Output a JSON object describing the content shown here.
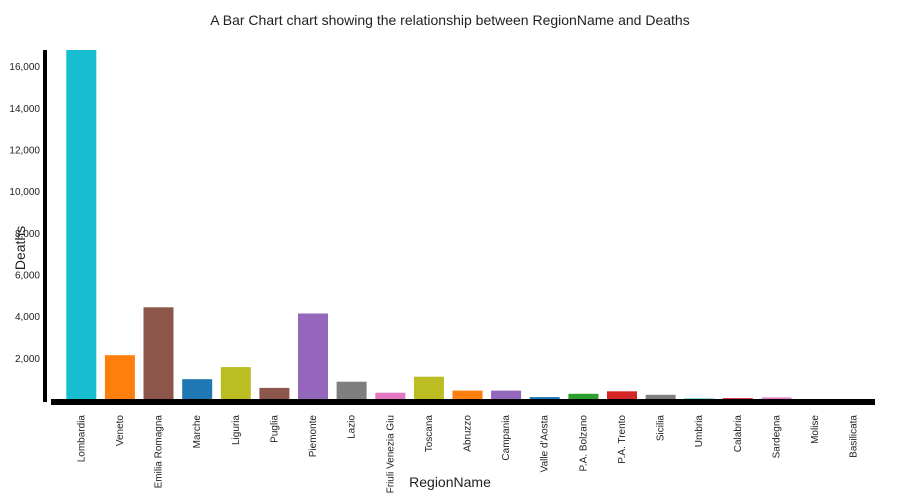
{
  "chart_data": {
    "type": "bar",
    "title": "A Bar Chart chart showing the relationship between RegionName and Deaths",
    "xlabel": "RegionName",
    "ylabel": "Deaths",
    "ylim": [
      0,
      16800
    ],
    "yticks": [
      2000,
      4000,
      6000,
      8000,
      10000,
      12000,
      14000,
      16000
    ],
    "ytick_labels": [
      "2,000",
      "4,000",
      "6,000",
      "8,000",
      "10,000",
      "12,000",
      "14,000",
      "16,000"
    ],
    "grid": false,
    "legend": "none",
    "categories": [
      "Lombardia",
      "Veneto",
      "Emilia Romagna",
      "Marche",
      "Liguria",
      "Puglia",
      "Piemonte",
      "Lazio",
      "Friuli Venezia Giulia",
      "Toscana",
      "Abruzzo",
      "Campania",
      "Valle d'Aosta",
      "P.A. Bolzano",
      "P.A. Trento",
      "Sicilia",
      "Umbria",
      "Calabria",
      "Sardegna",
      "Molise",
      "Basilicata"
    ],
    "category_labels": [
      "Lombardia",
      "Veneto",
      "Emilia Romagna",
      "Marche",
      "Liguria",
      "Puglia",
      "Piemonte",
      "Lazio",
      "Friuli Venezia Giu",
      "Toscana",
      "Abruzzo",
      "Campania",
      "Valle d'Aosta",
      "P.A. Bolzano",
      "P.A. Trento",
      "Sicilia",
      "Umbria",
      "Calabria",
      "Sardegna",
      "Molise",
      "Basilicata"
    ],
    "values": [
      16800,
      2150,
      4450,
      1000,
      1580,
      580,
      4150,
      880,
      350,
      1120,
      450,
      450,
      140,
      300,
      420,
      250,
      70,
      90,
      120,
      25,
      27
    ],
    "colors": [
      "#17becf",
      "#ff7f0e",
      "#8c564b",
      "#1f77b4",
      "#bcbd22",
      "#8c564b",
      "#9467bd",
      "#7f7f7f",
      "#e377c2",
      "#bcbd22",
      "#ff7f0e",
      "#9467bd",
      "#1f77b4",
      "#2ca02c",
      "#d62728",
      "#7f7f7f",
      "#17becf",
      "#d62728",
      "#e377c2",
      "#7f7f7f",
      "#bcbd22"
    ]
  }
}
